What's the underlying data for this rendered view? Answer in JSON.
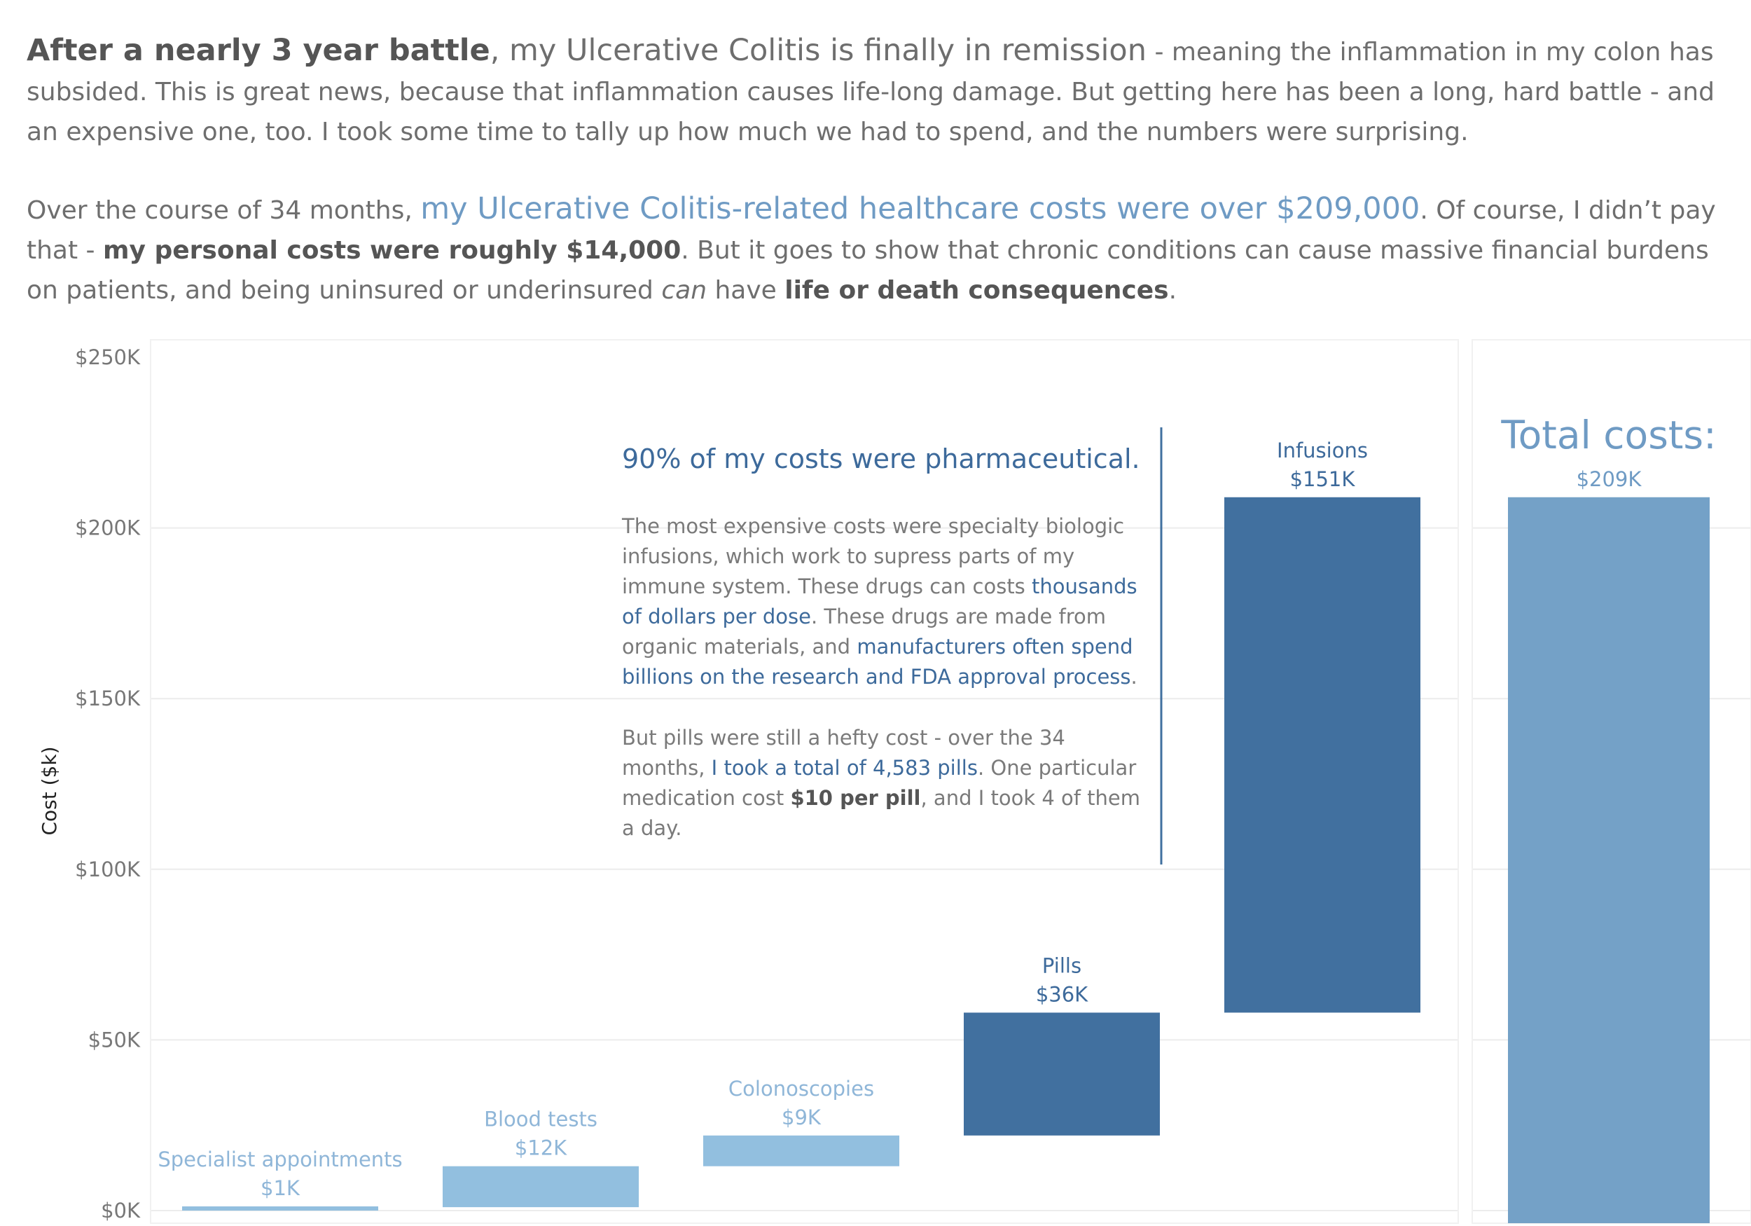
{
  "intro": {
    "p1": {
      "bold_lead": "After a nearly 3 year battle",
      "comma": ",",
      "lead_rest": " my Ulcerative Colitis is finally in remission",
      "rest": " - meaning the inflammation in my colon has subsided. This is great news, because that inflammation causes life-long damage. But getting here has been a long, hard battle - and an expensive one, too. I took some time to tally up how much we had to spend, and the numbers were surprising."
    },
    "p2": {
      "start": "Over the course of 34 months, ",
      "highlight": "my Ulcerative Colitis-related healthcare costs were over $209,000",
      "mid1": ". Of course, I didn’t pay that - ",
      "bold1": "my personal costs were roughly $14,000",
      "mid2": ". But it goes to show that chronic conditions can cause massive financial burdens on patients, and being uninsured or underinsured ",
      "italic": "can",
      "mid3": " have ",
      "bold2": "life or death consequences",
      "end": "."
    }
  },
  "annotation": {
    "title": "90% of my costs were pharmaceutical.",
    "p1": {
      "t1": "The most expensive costs were specialty biologic infusions, which work to supress parts of my immune system. These drugs can costs ",
      "h1": "thousands of dollars per dose",
      "t2": ". These drugs are made from organic materials, and ",
      "h2": "manufacturers often spend billions on the research and FDA approval process",
      "t3": "."
    },
    "p2": {
      "t1": "But pills were still a hefty cost - over the 34 months, ",
      "h1": "I took a total of 4,583 pills",
      "t2": ". One particular medication cost ",
      "b1": "$10 per pill",
      "t3": ", and I took 4 of them a day."
    }
  },
  "colors": {
    "light": "#92bfdf",
    "dark": "#41709f",
    "total": "#74a1c7",
    "light_text": "#8fb6d8",
    "dark_text": "#3d6a9b",
    "total_text": "#6f9bc4",
    "grid": "#ececec"
  },
  "chart_data": {
    "type": "bar",
    "subtype": "waterfall",
    "ylabel": "Cost ($k)",
    "ylim": [
      0,
      250
    ],
    "ytick_labels": [
      "$0K",
      "$50K",
      "$100K",
      "$150K",
      "$200K",
      "$250K"
    ],
    "ytick_values": [
      0,
      50,
      100,
      150,
      200,
      250
    ],
    "grid": true,
    "categories": [
      "Specialist appointments",
      "Blood tests",
      "Colonoscopies",
      "Pills",
      "Infusions"
    ],
    "values": [
      1,
      12,
      9,
      36,
      151
    ],
    "value_labels": [
      "$1K",
      "$12K",
      "$9K",
      "$36K",
      "$151K"
    ],
    "category_tone": [
      "light",
      "light",
      "light",
      "dark",
      "dark"
    ],
    "total": {
      "label": "Total costs:",
      "value": 209,
      "value_label": "$209K"
    }
  }
}
